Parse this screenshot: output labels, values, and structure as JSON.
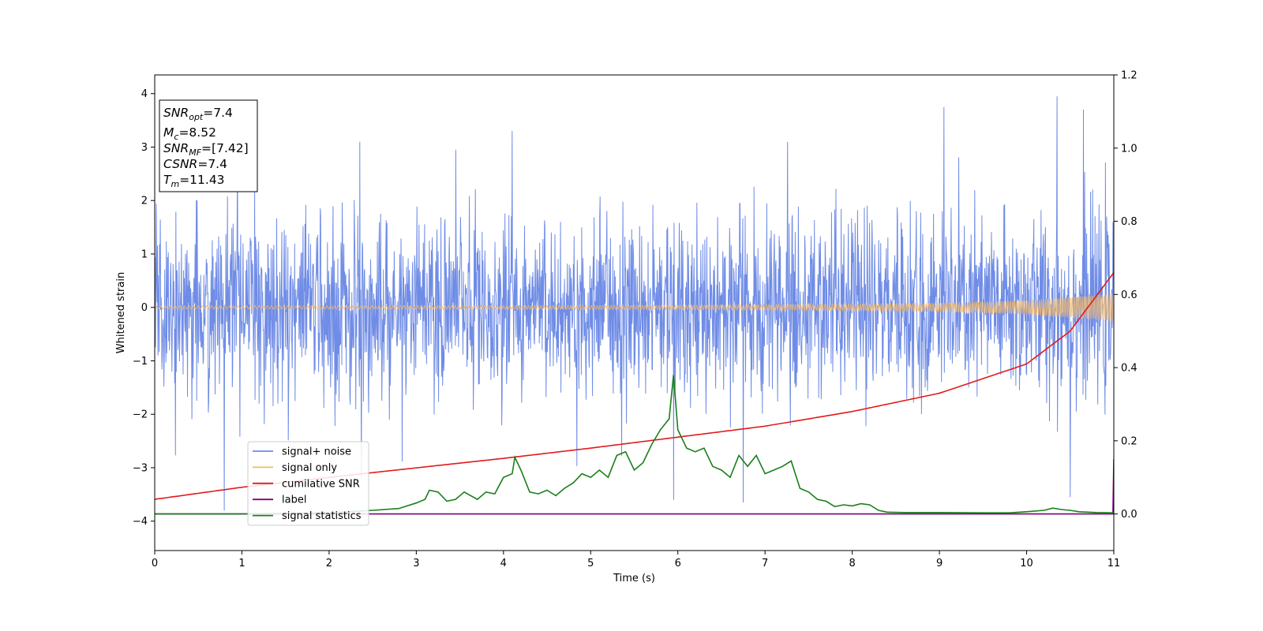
{
  "chart_data": {
    "type": "line",
    "xlabel": "Time (s)",
    "ylabel": "Whitened strain",
    "xlim": [
      0,
      11
    ],
    "ylim": [
      -4.55,
      4.35
    ],
    "y2lim": [
      -0.1,
      1.2
    ],
    "grid": false,
    "x_ticks": [
      "0",
      "1",
      "2",
      "3",
      "4",
      "5",
      "6",
      "7",
      "8",
      "9",
      "10",
      "11"
    ],
    "y_ticks": [
      "−4",
      "−3",
      "−2",
      "−1",
      "0",
      "1",
      "2",
      "3",
      "4"
    ],
    "y2_ticks": [
      "0.0",
      "0.2",
      "0.4",
      "0.6",
      "0.8",
      "1.0",
      "1.2"
    ],
    "legend_position": "lower-left",
    "colors": {
      "noise": "#6f8ce6",
      "signal": "#f2b96b",
      "snr": "#e31a1c",
      "label": "#800080",
      "stats": "#1a7f1a"
    },
    "series": [
      {
        "name": "signal+ noise",
        "axis": "left",
        "note_amplitude_std": 0.85,
        "peaks": [
          [
            0.8,
            -3.8
          ],
          [
            2.35,
            3.1
          ],
          [
            4.1,
            3.3
          ],
          [
            5.95,
            -3.6
          ],
          [
            9.05,
            3.75
          ],
          [
            10.35,
            3.95
          ],
          [
            10.5,
            -3.55
          ],
          [
            10.65,
            3.7
          ],
          [
            6.75,
            -3.65
          ]
        ]
      },
      {
        "name": "signal only",
        "axis": "left",
        "envelope": [
          [
            0,
            0.03
          ],
          [
            2,
            0.03
          ],
          [
            4,
            0.035
          ],
          [
            6,
            0.04
          ],
          [
            8,
            0.06
          ],
          [
            9,
            0.08
          ],
          [
            10,
            0.13
          ],
          [
            11,
            0.26
          ]
        ]
      },
      {
        "name": "cumilative SNR",
        "axis": "right",
        "x": [
          0,
          1,
          2,
          3,
          4,
          5,
          6,
          7,
          8,
          9,
          10,
          10.5,
          11
        ],
        "y": [
          0.04,
          0.073,
          0.1,
          0.126,
          0.152,
          0.18,
          0.21,
          0.24,
          0.28,
          0.33,
          0.41,
          0.5,
          0.66
        ]
      },
      {
        "name": "label",
        "axis": "right",
        "x": [
          0,
          10.99,
          11
        ],
        "y": [
          0,
          0,
          0.15
        ]
      },
      {
        "name": "signal statistics",
        "axis": "right",
        "x": [
          0,
          1,
          2,
          2.5,
          2.8,
          3.0,
          3.1,
          3.15,
          3.25,
          3.35,
          3.45,
          3.55,
          3.7,
          3.8,
          3.9,
          4.0,
          4.1,
          4.13,
          4.2,
          4.3,
          4.4,
          4.5,
          4.6,
          4.7,
          4.8,
          4.9,
          5.0,
          5.1,
          5.2,
          5.3,
          5.4,
          5.5,
          5.6,
          5.7,
          5.8,
          5.9,
          5.95,
          6.0,
          6.1,
          6.2,
          6.3,
          6.4,
          6.5,
          6.6,
          6.7,
          6.8,
          6.9,
          7.0,
          7.1,
          7.2,
          7.3,
          7.4,
          7.5,
          7.6,
          7.7,
          7.8,
          7.9,
          8.0,
          8.1,
          8.2,
          8.3,
          8.4,
          8.6,
          9.0,
          9.5,
          9.8,
          10.0,
          10.2,
          10.3,
          10.4,
          10.5,
          10.6,
          10.8,
          11.0
        ],
        "y": [
          0,
          0,
          0.003,
          0.01,
          0.015,
          0.03,
          0.04,
          0.065,
          0.06,
          0.035,
          0.04,
          0.06,
          0.04,
          0.06,
          0.055,
          0.1,
          0.11,
          0.155,
          0.12,
          0.06,
          0.055,
          0.065,
          0.05,
          0.07,
          0.085,
          0.11,
          0.1,
          0.12,
          0.1,
          0.16,
          0.17,
          0.12,
          0.14,
          0.19,
          0.23,
          0.26,
          0.38,
          0.23,
          0.18,
          0.17,
          0.18,
          0.13,
          0.12,
          0.1,
          0.16,
          0.13,
          0.16,
          0.11,
          0.12,
          0.13,
          0.145,
          0.07,
          0.06,
          0.04,
          0.035,
          0.02,
          0.025,
          0.022,
          0.028,
          0.025,
          0.01,
          0.005,
          0.004,
          0.004,
          0.003,
          0.003,
          0.006,
          0.01,
          0.016,
          0.012,
          0.01,
          0.006,
          0.004,
          0.003
        ]
      }
    ],
    "annotation": {
      "lines": [
        {
          "base": "SNR",
          "sub": "opt",
          "value": "=7.4"
        },
        {
          "base": "M",
          "sub": "c",
          "value": "=8.52"
        },
        {
          "base": "SNR",
          "sub": "MF",
          "value": "=[7.42]"
        },
        {
          "base": "CSNR",
          "sub": "",
          "value": "=7.4"
        },
        {
          "base": "T",
          "sub": "m",
          "value": "=11.43"
        }
      ]
    }
  }
}
